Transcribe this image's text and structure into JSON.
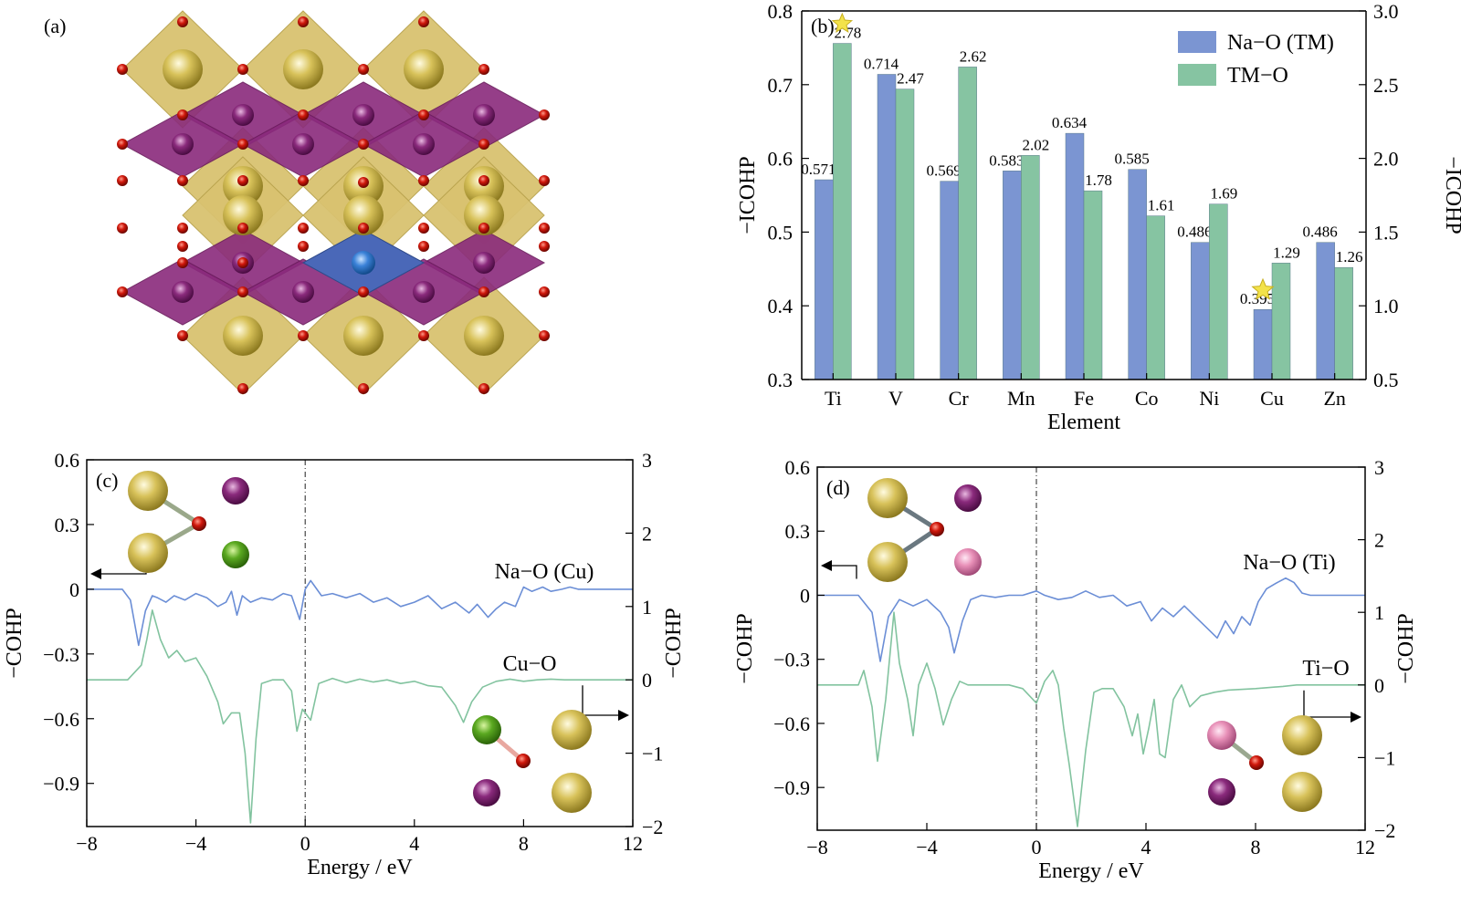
{
  "panel_a": {
    "label": "(a)"
  },
  "chart_data": [
    {
      "type": "bar",
      "panel": "(b)",
      "categories": [
        "Ti",
        "V",
        "Cr",
        "Mn",
        "Fe",
        "Co",
        "Ni",
        "Cu",
        "Zn"
      ],
      "xlabel": "Element",
      "ylabel_left": "−ICOHP",
      "ylabel_right": "−ICOHP",
      "ylim_left": [
        0.3,
        0.8
      ],
      "ylim_right": [
        0.5,
        3.0
      ],
      "yticks_left": [
        "0.3",
        "0.4",
        "0.5",
        "0.6",
        "0.7",
        "0.8"
      ],
      "yticks_right": [
        "0.5",
        "1.0",
        "1.5",
        "2.0",
        "2.5",
        "3.0"
      ],
      "legend_position": "top-right",
      "series": [
        {
          "name": "Na−O (TM)",
          "axis": "left",
          "color": "#7b95d2",
          "values": [
            0.571,
            0.714,
            0.569,
            0.583,
            0.634,
            0.585,
            0.486,
            0.395,
            0.486
          ],
          "labels": [
            "0.571",
            "0.714",
            "0.569",
            "0.583",
            "0.634",
            "0.585",
            "0.486",
            "0.395",
            "0.486"
          ]
        },
        {
          "name": "TM−O",
          "axis": "right",
          "color": "#86c4a2",
          "values": [
            2.78,
            2.47,
            2.62,
            2.02,
            1.78,
            1.61,
            1.69,
            1.29,
            1.26
          ],
          "labels": [
            "2.78",
            "2.47",
            "2.62",
            "2.02",
            "1.78",
            "1.61",
            "1.69",
            "1.29",
            "1.26"
          ]
        }
      ],
      "highlights": [
        "TM−O Ti (max)",
        "Na−O Cu (min)"
      ],
      "left_axis_color": "#4a6aa8",
      "right_axis_color": "#6fbf8e"
    },
    {
      "type": "line",
      "panel": "(c)",
      "xlabel": "Energy / eV",
      "xlim": [
        -8,
        12
      ],
      "xticks": [
        "−8",
        "−4",
        "0",
        "4",
        "8",
        "12"
      ],
      "ylabel_left": "−COHP",
      "ylabel_right": "−COHP",
      "ylim_left": [
        -1.1,
        0.6
      ],
      "ylim_right": [
        -2,
        3
      ],
      "yticks_left": [
        "−0.9",
        "−0.6",
        "−0.3",
        "0",
        "0.3",
        "0.6"
      ],
      "yticks_right": [
        "−2",
        "−1",
        "0",
        "1",
        "2",
        "3"
      ],
      "fermi_level": 0,
      "series": [
        {
          "name": "Na−O (Cu)",
          "axis": "left",
          "color": "#6b8ed6",
          "x": [
            -8,
            -6.7,
            -6.4,
            -6.1,
            -5.85,
            -5.6,
            -5.4,
            -5.1,
            -4.8,
            -4.4,
            -4.0,
            -3.6,
            -3.2,
            -2.9,
            -2.7,
            -2.5,
            -2.3,
            -2.0,
            -1.6,
            -1.2,
            -0.8,
            -0.5,
            -0.2,
            0,
            0.2,
            0.6,
            1.0,
            1.5,
            2.0,
            2.5,
            3.0,
            3.5,
            4.0,
            4.5,
            5.0,
            5.5,
            6.0,
            6.3,
            6.7,
            7.0,
            7.3,
            7.7,
            8.0,
            8.3,
            8.7,
            9.0,
            9.4,
            9.7,
            10.0,
            12
          ],
          "y": [
            0,
            0,
            -0.05,
            -0.26,
            -0.1,
            -0.03,
            -0.04,
            -0.06,
            -0.03,
            -0.05,
            -0.02,
            -0.04,
            -0.08,
            -0.06,
            -0.01,
            -0.12,
            -0.03,
            -0.06,
            -0.04,
            -0.05,
            -0.02,
            -0.03,
            -0.14,
            0.0,
            0.04,
            -0.03,
            -0.02,
            -0.04,
            -0.02,
            -0.06,
            -0.04,
            -0.08,
            -0.06,
            -0.03,
            -0.09,
            -0.06,
            -0.11,
            -0.07,
            -0.13,
            -0.09,
            -0.06,
            -0.08,
            0.01,
            -0.01,
            0.01,
            -0.01,
            0.0,
            0.01,
            0,
            0
          ]
        },
        {
          "name": "Cu−O",
          "axis": "right",
          "color": "#82c39f",
          "x": [
            -8,
            -6.5,
            -6.0,
            -5.8,
            -5.6,
            -5.3,
            -5.0,
            -4.7,
            -4.4,
            -4.0,
            -3.6,
            -3.2,
            -3.0,
            -2.7,
            -2.4,
            -2.2,
            -2.0,
            -1.8,
            -1.6,
            -1.2,
            -0.8,
            -0.5,
            -0.3,
            -0.1,
            0.2,
            0.5,
            1.0,
            1.5,
            2.0,
            2.5,
            3.0,
            3.5,
            4.0,
            4.5,
            5.0,
            5.5,
            5.8,
            6.1,
            6.5,
            7.0,
            7.5,
            8.0,
            8.5,
            9.0,
            9.5,
            10.0,
            12
          ],
          "y": [
            0,
            0,
            0.2,
            0.55,
            0.95,
            0.55,
            0.3,
            0.4,
            0.25,
            0.3,
            0.05,
            -0.3,
            -0.6,
            -0.45,
            -0.45,
            -1.0,
            -1.95,
            -0.8,
            -0.05,
            0,
            0,
            -0.15,
            -0.7,
            -0.4,
            -0.55,
            -0.05,
            0.02,
            -0.04,
            0.01,
            -0.03,
            0.0,
            -0.05,
            -0.02,
            -0.08,
            -0.1,
            -0.35,
            -0.58,
            -0.3,
            -0.1,
            -0.02,
            0.01,
            -0.02,
            0.0,
            0.01,
            0,
            0,
            0
          ]
        }
      ],
      "annotations": [
        "Na−O (Cu)",
        "Cu−O"
      ]
    },
    {
      "type": "line",
      "panel": "(d)",
      "xlabel": "Energy / eV",
      "xlim": [
        -8,
        12
      ],
      "xticks": [
        "−8",
        "−4",
        "0",
        "4",
        "8",
        "12"
      ],
      "ylabel_left": "−COHP",
      "ylabel_right": "−COHP",
      "ylim_left": [
        -1.1,
        0.6
      ],
      "ylim_right": [
        -2,
        3
      ],
      "yticks_left": [
        "−0.9",
        "−0.6",
        "−0.3",
        "0",
        "0.3",
        "0.6"
      ],
      "yticks_right": [
        "−2",
        "−1",
        "0",
        "1",
        "2",
        "3"
      ],
      "fermi_level": 0,
      "series": [
        {
          "name": "Na−O (Ti)",
          "axis": "left",
          "color": "#6b8ed6",
          "x": [
            -8,
            -6.5,
            -6.0,
            -5.7,
            -5.4,
            -5.0,
            -4.5,
            -4.0,
            -3.5,
            -3.2,
            -3.0,
            -2.7,
            -2.4,
            -2.0,
            -1.5,
            -1.0,
            -0.5,
            0,
            0.3,
            0.8,
            1.3,
            1.8,
            2.3,
            2.8,
            3.3,
            3.8,
            4.2,
            4.6,
            5.0,
            5.4,
            5.8,
            6.2,
            6.6,
            6.9,
            7.2,
            7.5,
            7.8,
            8.1,
            8.4,
            8.8,
            9.1,
            9.4,
            9.7,
            10.0,
            12
          ],
          "y": [
            0,
            0,
            -0.08,
            -0.31,
            -0.1,
            -0.02,
            -0.05,
            -0.02,
            -0.08,
            -0.15,
            -0.27,
            -0.12,
            -0.02,
            0.0,
            -0.01,
            0.0,
            0.0,
            0.02,
            0.0,
            -0.02,
            -0.01,
            0.02,
            -0.01,
            0.0,
            -0.05,
            -0.03,
            -0.12,
            -0.06,
            -0.1,
            -0.05,
            -0.1,
            -0.15,
            -0.2,
            -0.12,
            -0.18,
            -0.1,
            -0.14,
            -0.03,
            0.03,
            0.06,
            0.08,
            0.06,
            0.01,
            0,
            0
          ]
        },
        {
          "name": "Ti−O",
          "axis": "right",
          "color": "#82c39f",
          "x": [
            -8,
            -6.5,
            -6.3,
            -6.0,
            -5.8,
            -5.5,
            -5.2,
            -5.0,
            -4.7,
            -4.5,
            -4.3,
            -4.0,
            -3.7,
            -3.4,
            -3.1,
            -2.8,
            -2.5,
            -2.0,
            -1.0,
            -0.5,
            0,
            0.3,
            0.6,
            0.8,
            1.0,
            1.2,
            1.5,
            1.8,
            2.1,
            2.4,
            2.8,
            3.2,
            3.5,
            3.7,
            3.9,
            4.1,
            4.3,
            4.5,
            4.7,
            5.0,
            5.3,
            5.6,
            6.0,
            6.5,
            7.0,
            8.0,
            9.0,
            9.5,
            10.0,
            12
          ],
          "y": [
            0,
            0,
            0.2,
            -0.3,
            -1.05,
            -0.2,
            1.0,
            0.3,
            -0.2,
            -0.7,
            0.0,
            0.3,
            -0.05,
            -0.55,
            -0.2,
            0.05,
            0.0,
            0.0,
            0.0,
            -0.05,
            -0.25,
            0.05,
            0.2,
            0.0,
            -0.6,
            -1.1,
            -1.95,
            -0.9,
            -0.1,
            -0.05,
            -0.05,
            -0.3,
            -0.7,
            -0.4,
            -0.95,
            -0.6,
            -0.2,
            -0.95,
            -1.0,
            -0.2,
            0.0,
            -0.3,
            -0.15,
            -0.1,
            -0.07,
            -0.05,
            -0.02,
            0.0,
            0,
            0
          ]
        }
      ],
      "annotations": [
        "Na−O (Ti)",
        "Ti−O"
      ]
    }
  ]
}
